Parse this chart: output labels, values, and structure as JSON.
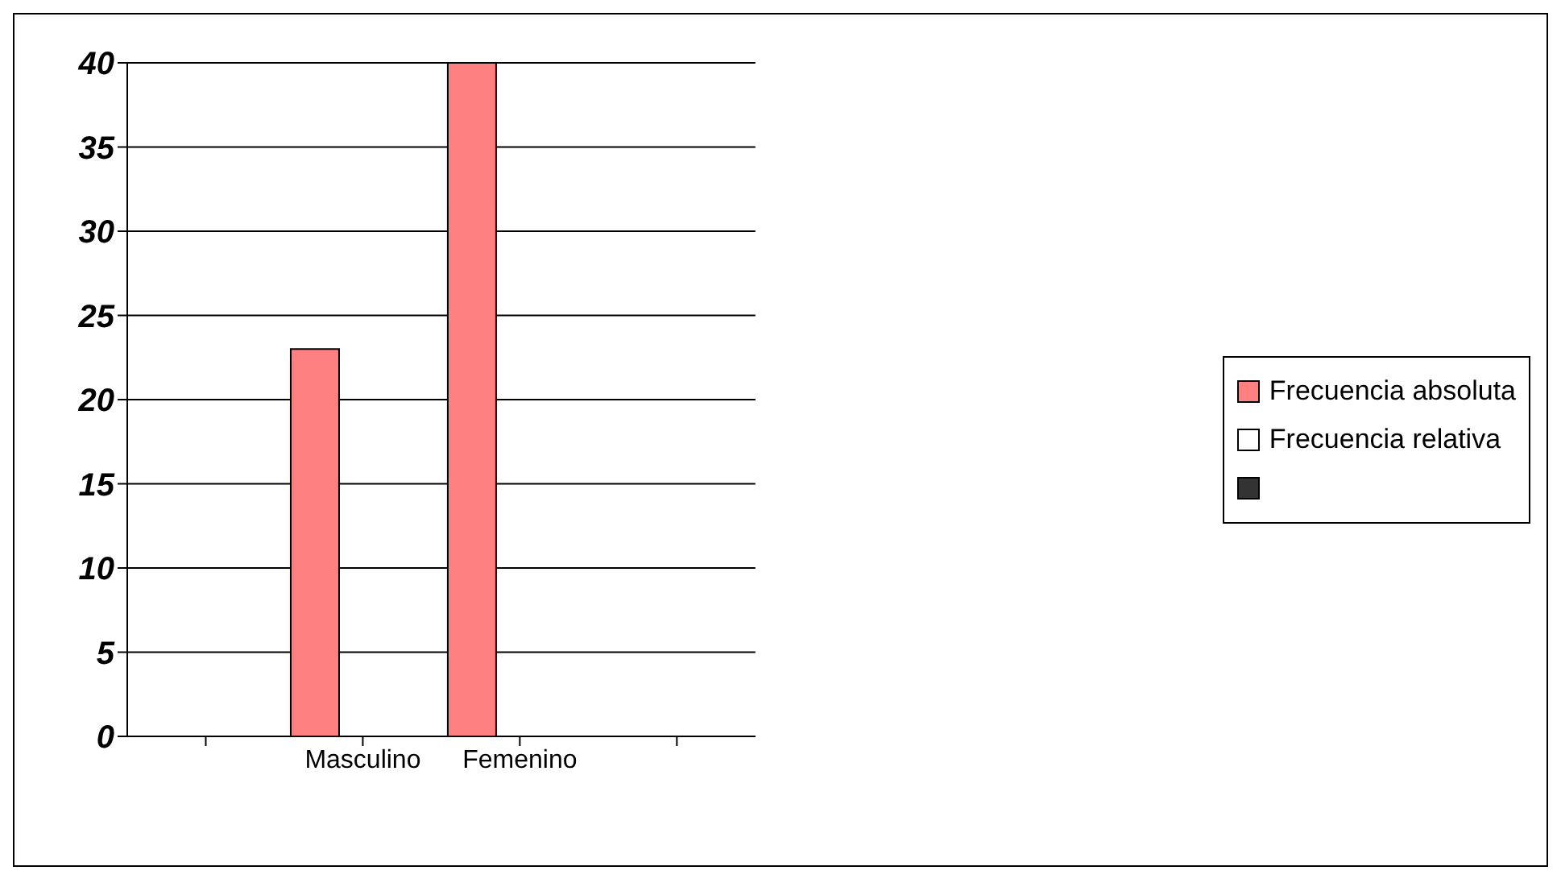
{
  "chart_data": {
    "type": "bar",
    "categories": [
      null,
      "Masculino",
      "Femenino",
      null
    ],
    "series": [
      {
        "name": "Frecuencia absoluta",
        "color": "#ff8080",
        "values": [
          null,
          23,
          40,
          null
        ]
      },
      {
        "name": "Frecuencia relativa",
        "color": "#ffffff",
        "values": [
          null,
          null,
          null,
          null
        ]
      },
      {
        "color": "#333333",
        "values": [
          null,
          null,
          null,
          null
        ]
      }
    ],
    "ylim": [
      0,
      40
    ],
    "yticks": [
      0,
      5,
      10,
      15,
      20,
      25,
      30,
      35,
      40
    ],
    "grid": "y",
    "legend": "right"
  }
}
